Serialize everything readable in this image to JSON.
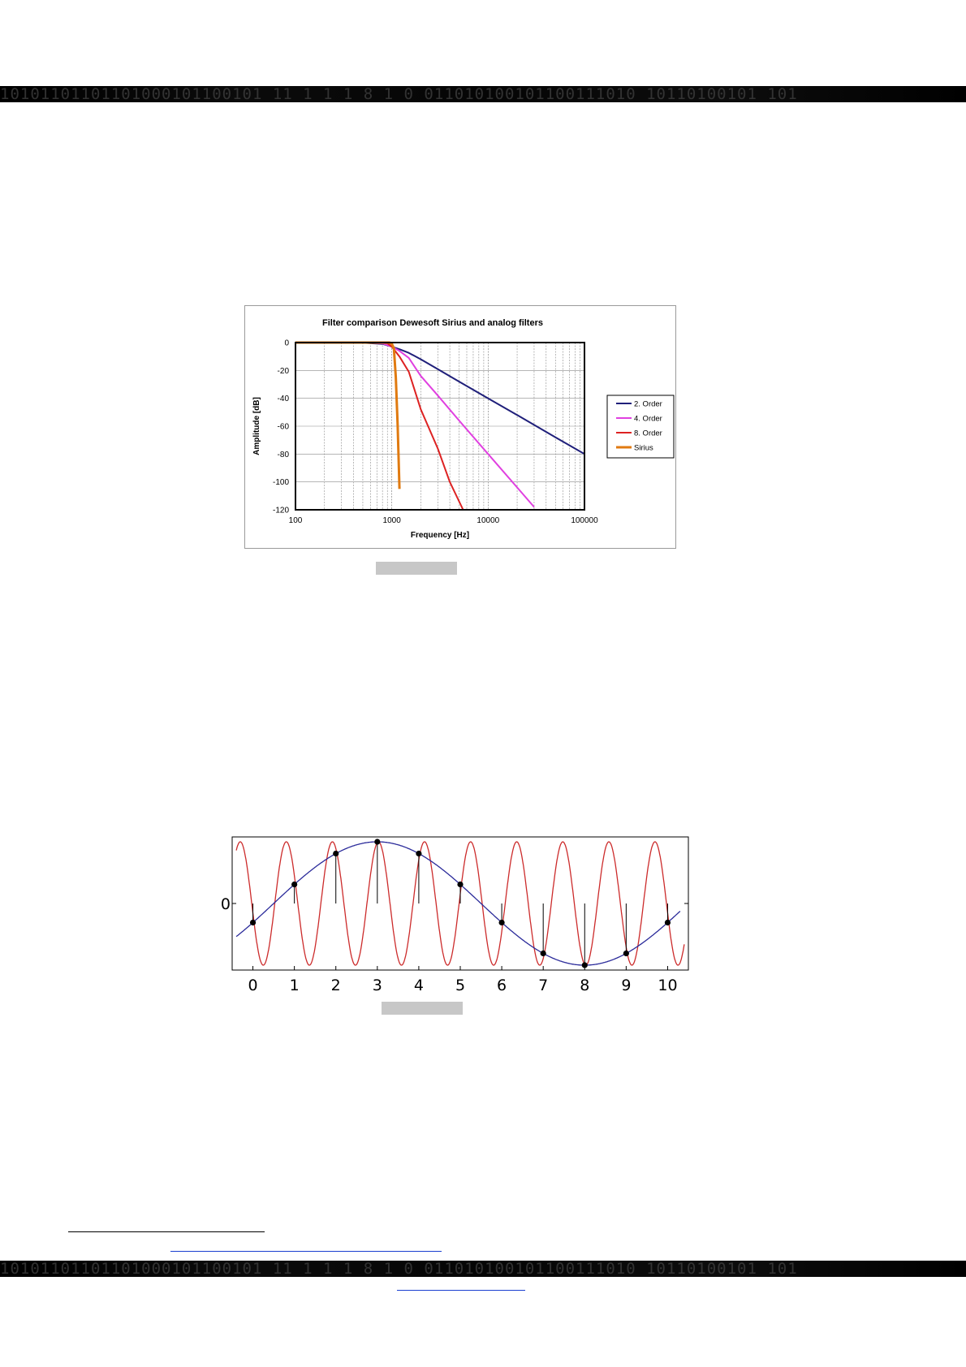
{
  "header_band": {
    "pattern": "10101101101101000101100101 11 1 1 1 8 1 0 011010100101100111010 10110100101 101"
  },
  "footer_band": {
    "pattern": "10101101101101000101100101 11 1 1 1 8 1 0 011010100101100111010 10110100101 101"
  },
  "chart_data": [
    {
      "type": "line",
      "title": "Filter comparison Dewesoft Sirius and analog filters",
      "xlabel": "Frequency [Hz]",
      "ylabel": "Amplitude [dB]",
      "xscale": "log",
      "xlim": [
        100,
        100000
      ],
      "ylim": [
        -120,
        0
      ],
      "xticks": [
        "100",
        "1000",
        "10000",
        "100000"
      ],
      "yticks": [
        "0",
        "-20",
        "-40",
        "-60",
        "-80",
        "-100",
        "-120"
      ],
      "grid": true,
      "legend_position": "right",
      "series": [
        {
          "name": "2. Order",
          "color": "#1f1f7a",
          "x": [
            100,
            500,
            800,
            1000,
            1200,
            1500,
            2000,
            3000,
            5000,
            10000,
            20000,
            50000,
            100000
          ],
          "y": [
            0,
            -0.1,
            -1,
            -3,
            -4.8,
            -7.4,
            -12,
            -19.1,
            -28,
            -40,
            -52,
            -68,
            -80
          ]
        },
        {
          "name": "4. Order",
          "color": "#e040e0",
          "x": [
            100,
            500,
            800,
            1000,
            1200,
            1500,
            2000,
            3000,
            5000,
            10000,
            20000,
            30000
          ],
          "y": [
            0,
            0,
            -0.6,
            -3,
            -6,
            -11,
            -24,
            -38,
            -56,
            -80,
            -104,
            -118
          ]
        },
        {
          "name": "8. Order",
          "color": "#dd2222",
          "x": [
            100,
            700,
            900,
            1000,
            1200,
            1500,
            2000,
            3000,
            4000,
            5500
          ],
          "y": [
            0,
            0,
            -0.5,
            -3,
            -10,
            -21,
            -48,
            -76,
            -100,
            -120
          ]
        },
        {
          "name": "Sirius",
          "color": "#e07a10",
          "x": [
            100,
            950,
            1000,
            1050,
            1100,
            1150,
            1200
          ],
          "y": [
            0,
            0,
            -1,
            -4,
            -25,
            -60,
            -105
          ]
        }
      ]
    },
    {
      "type": "line",
      "xlim": [
        -0.5,
        10.5
      ],
      "xticks": [
        "0",
        "1",
        "2",
        "3",
        "4",
        "5",
        "6",
        "7",
        "8",
        "9",
        "10"
      ],
      "yticks": [
        "0"
      ],
      "grid": false,
      "series": [
        {
          "color": "#cc2b2b",
          "function": "sin(2*pi*0.9*(x-2.75))"
        },
        {
          "color": "#2a2a9a",
          "function": "-sin(2*pi*0.1*(x-5.5))"
        }
      ],
      "samples": {
        "x": [
          0,
          1,
          2,
          3,
          4,
          5,
          6,
          7,
          8,
          9,
          10
        ],
        "y": [
          -0.309,
          0.309,
          0.809,
          1,
          0.809,
          0.309,
          -0.309,
          -0.809,
          -1,
          -0.809,
          -0.309
        ]
      }
    }
  ]
}
